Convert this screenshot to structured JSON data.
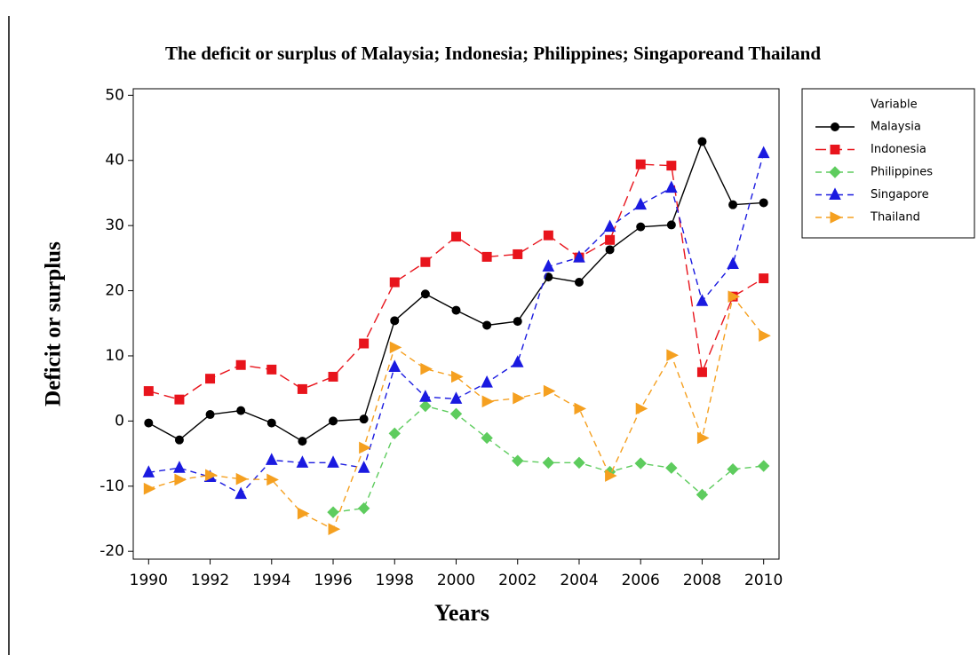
{
  "chart_data": {
    "type": "line",
    "title": "The deficit or surplus of Malaysia; Indonesia; Philippines; Singaporeand Thailand",
    "x_label": "Years",
    "y_label": "Deficit or surplus",
    "legend_title": "Variable",
    "x": [
      1990,
      1991,
      1992,
      1993,
      1994,
      1995,
      1996,
      1997,
      1998,
      1999,
      2000,
      2001,
      2002,
      2003,
      2004,
      2005,
      2006,
      2007,
      2008,
      2009,
      2010
    ],
    "xlim": [
      1989.5,
      2010.5
    ],
    "xticks": [
      1990,
      1992,
      1994,
      1996,
      1998,
      2000,
      2002,
      2004,
      2006,
      2008,
      2010
    ],
    "ylim": [
      -21.2,
      51
    ],
    "yticks": [
      -20,
      -10,
      0,
      10,
      20,
      30,
      40,
      50
    ],
    "legend": "outside-right",
    "series": [
      {
        "name": "Malaysia",
        "color": "#000000",
        "marker": "circle",
        "line_style": "solid",
        "values": [
          -0.3,
          -2.9,
          1.0,
          1.6,
          -0.3,
          -3.1,
          0,
          0.3,
          15.4,
          19.5,
          17.0,
          14.7,
          15.3,
          22.1,
          21.3,
          26.3,
          29.8,
          30.1,
          42.9,
          33.2,
          33.5
        ]
      },
      {
        "name": "Indonesia",
        "color": "#e8141c",
        "marker": "square",
        "line_style": "longdash",
        "values": [
          4.6,
          3.3,
          6.5,
          8.6,
          7.9,
          4.9,
          6.8,
          11.9,
          21.3,
          24.4,
          28.3,
          25.2,
          25.6,
          28.5,
          25.1,
          27.8,
          39.4,
          39.2,
          7.5,
          19.1,
          21.9
        ]
      },
      {
        "name": "Philippines",
        "color": "#5ecc5e",
        "marker": "diamond",
        "line_style": "dash",
        "values": [
          null,
          null,
          null,
          null,
          null,
          null,
          -14.0,
          -13.4,
          -1.9,
          2.3,
          1.1,
          -2.6,
          -6.1,
          -6.4,
          -6.4,
          -7.8,
          -6.5,
          -7.2,
          -11.3,
          -7.4,
          -6.9
        ]
      },
      {
        "name": "Singapore",
        "color": "#1a1ae0",
        "marker": "triangle-up",
        "line_style": "dash",
        "values": [
          -7.9,
          -7.2,
          -8.6,
          -11.2,
          -6.0,
          -6.4,
          -6.4,
          -7.2,
          8.3,
          3.7,
          3.4,
          5.9,
          9.0,
          23.7,
          25.1,
          29.8,
          33.2,
          35.8,
          18.4,
          24.1,
          41.1
        ]
      },
      {
        "name": "Thailand",
        "color": "#f5a020",
        "marker": "triangle-right",
        "line_style": "dash",
        "values": [
          -10.4,
          -9.0,
          -8.3,
          -8.9,
          -9.0,
          -14.2,
          -16.6,
          -4.1,
          11.3,
          8.0,
          6.8,
          3.0,
          3.5,
          4.6,
          1.9,
          -8.4,
          1.9,
          10.1,
          -2.6,
          19.1,
          13.1
        ]
      }
    ]
  }
}
